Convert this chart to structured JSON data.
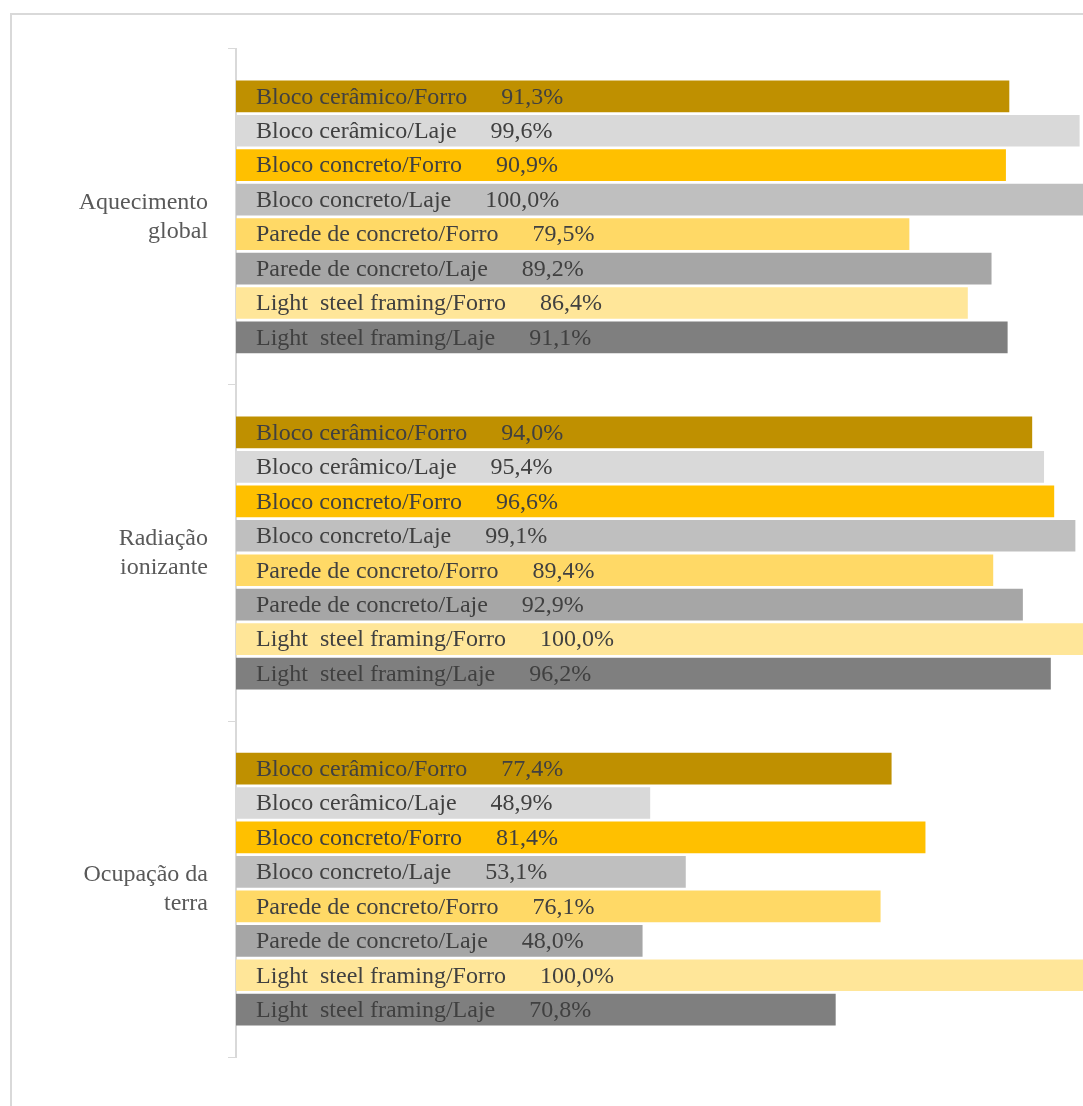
{
  "chart_data": {
    "type": "bar",
    "orientation": "horizontal",
    "categories": [
      "Aquecimento global",
      "Radiação ionizante",
      "Ocupação da terra"
    ],
    "xlim": [
      0,
      100
    ],
    "tick_labels": "y",
    "grid": false,
    "legend": false,
    "series": [
      {
        "name": "Bloco cerâmico/Forro",
        "color": "#bf9000",
        "values": [
          91.3,
          94.0,
          77.4
        ],
        "value_labels": [
          "91,3%",
          "94,0%",
          "77,4%"
        ]
      },
      {
        "name": "Bloco cerâmico/Laje",
        "color": "#d9d9d9",
        "values": [
          99.6,
          95.4,
          48.9
        ],
        "value_labels": [
          "99,6%",
          "95,4%",
          "48,9%"
        ]
      },
      {
        "name": "Bloco concreto/Forro",
        "color": "#ffc000",
        "values": [
          90.9,
          96.6,
          81.4
        ],
        "value_labels": [
          "90,9%",
          "96,6%",
          "81,4%"
        ]
      },
      {
        "name": "Bloco concreto/Laje",
        "color": "#bfbfbf",
        "values": [
          100.0,
          99.1,
          53.1
        ],
        "value_labels": [
          "100,0%",
          "99,1%",
          "53,1%"
        ]
      },
      {
        "name": "Parede de concreto/Forro",
        "color": "#ffd966",
        "values": [
          79.5,
          89.4,
          76.1
        ],
        "value_labels": [
          "79,5%",
          "89,4%",
          "76,1%"
        ]
      },
      {
        "name": "Parede de concreto/Laje",
        "color": "#a6a6a6",
        "values": [
          89.2,
          92.9,
          48.0
        ],
        "value_labels": [
          "89,2%",
          "92,9%",
          "48,0%"
        ]
      },
      {
        "name": "Light  steel framing/Forro",
        "color": "#ffe699",
        "values": [
          86.4,
          100.0,
          100.0
        ],
        "value_labels": [
          "86,4%",
          "100,0%",
          "100,0%"
        ]
      },
      {
        "name": "Light  steel framing/Laje",
        "color": "#7f7f7f",
        "values": [
          91.1,
          96.2,
          70.8
        ],
        "value_labels": [
          "91,1%",
          "96,2%",
          "70,8%"
        ]
      }
    ]
  }
}
